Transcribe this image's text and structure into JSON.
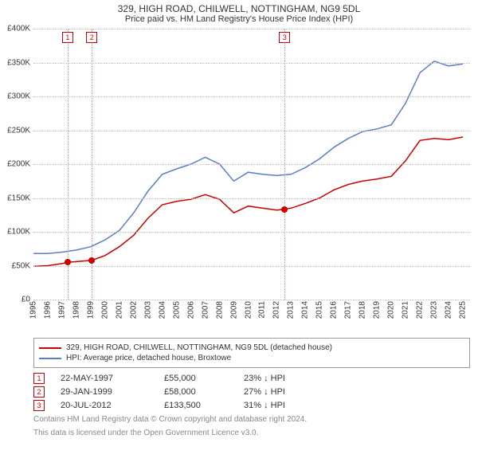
{
  "title": "329, HIGH ROAD, CHILWELL, NOTTINGHAM, NG9 5DL",
  "subtitle": "Price paid vs. HM Land Registry's House Price Index (HPI)",
  "chart": {
    "background": "#ffffff",
    "grid_color": "#bbbbbb",
    "x_min": 1995,
    "x_max": 2025.5,
    "y_min": 0,
    "y_max": 400000,
    "y_ticks": [
      0,
      50000,
      100000,
      150000,
      200000,
      250000,
      300000,
      350000,
      400000
    ],
    "y_tick_labels": [
      "£0",
      "£50K",
      "£100K",
      "£150K",
      "£200K",
      "£250K",
      "£300K",
      "£350K",
      "£400K"
    ],
    "x_ticks": [
      1995,
      1996,
      1997,
      1998,
      1999,
      2000,
      2001,
      2002,
      2003,
      2004,
      2005,
      2006,
      2007,
      2008,
      2009,
      2010,
      2011,
      2012,
      2013,
      2014,
      2015,
      2016,
      2017,
      2018,
      2019,
      2020,
      2021,
      2022,
      2023,
      2024,
      2025
    ],
    "markers": [
      {
        "n": "1",
        "x": 1997.39
      },
      {
        "n": "2",
        "x": 1999.08
      },
      {
        "n": "3",
        "x": 2012.55
      }
    ],
    "sale_points": [
      {
        "x": 1997.39,
        "y": 55000
      },
      {
        "x": 1999.08,
        "y": 58000
      },
      {
        "x": 2012.55,
        "y": 133500
      }
    ],
    "series": [
      {
        "name": "329, HIGH ROAD, CHILWELL, NOTTINGHAM, NG9 5DL (detached house)",
        "color": "#cc0000",
        "width": 1.5,
        "data": [
          [
            1995,
            49000
          ],
          [
            1996,
            50000
          ],
          [
            1997,
            53000
          ],
          [
            1997.39,
            55000
          ],
          [
            1998,
            56000
          ],
          [
            1999.08,
            58000
          ],
          [
            2000,
            65000
          ],
          [
            2001,
            78000
          ],
          [
            2002,
            95000
          ],
          [
            2003,
            120000
          ],
          [
            2004,
            140000
          ],
          [
            2005,
            145000
          ],
          [
            2006,
            148000
          ],
          [
            2007,
            155000
          ],
          [
            2008,
            148000
          ],
          [
            2009,
            128000
          ],
          [
            2010,
            138000
          ],
          [
            2011,
            135000
          ],
          [
            2012,
            132000
          ],
          [
            2012.55,
            133500
          ],
          [
            2013,
            135000
          ],
          [
            2014,
            142000
          ],
          [
            2015,
            150000
          ],
          [
            2016,
            162000
          ],
          [
            2017,
            170000
          ],
          [
            2018,
            175000
          ],
          [
            2019,
            178000
          ],
          [
            2020,
            182000
          ],
          [
            2021,
            205000
          ],
          [
            2022,
            235000
          ],
          [
            2023,
            238000
          ],
          [
            2024,
            236000
          ],
          [
            2025,
            240000
          ]
        ]
      },
      {
        "name": "HPI: Average price, detached house, Broxtowe",
        "color": "#5b7fc7",
        "width": 1.5,
        "data": [
          [
            1995,
            68000
          ],
          [
            1996,
            68000
          ],
          [
            1997,
            70000
          ],
          [
            1998,
            73000
          ],
          [
            1999,
            78000
          ],
          [
            2000,
            88000
          ],
          [
            2001,
            102000
          ],
          [
            2002,
            128000
          ],
          [
            2003,
            160000
          ],
          [
            2004,
            185000
          ],
          [
            2005,
            193000
          ],
          [
            2006,
            200000
          ],
          [
            2007,
            210000
          ],
          [
            2008,
            200000
          ],
          [
            2009,
            175000
          ],
          [
            2010,
            188000
          ],
          [
            2011,
            185000
          ],
          [
            2012,
            183000
          ],
          [
            2013,
            185000
          ],
          [
            2014,
            195000
          ],
          [
            2015,
            208000
          ],
          [
            2016,
            225000
          ],
          [
            2017,
            238000
          ],
          [
            2018,
            248000
          ],
          [
            2019,
            252000
          ],
          [
            2020,
            258000
          ],
          [
            2021,
            290000
          ],
          [
            2022,
            335000
          ],
          [
            2023,
            352000
          ],
          [
            2024,
            345000
          ],
          [
            2025,
            348000
          ]
        ]
      }
    ]
  },
  "legend": [
    {
      "color": "#cc0000",
      "label": "329, HIGH ROAD, CHILWELL, NOTTINGHAM, NG9 5DL (detached house)"
    },
    {
      "color": "#5b7fc7",
      "label": "HPI: Average price, detached house, Broxtowe"
    }
  ],
  "sales": [
    {
      "n": "1",
      "date": "22-MAY-1997",
      "price": "£55,000",
      "delta": "23% ↓ HPI"
    },
    {
      "n": "2",
      "date": "29-JAN-1999",
      "price": "£58,000",
      "delta": "27% ↓ HPI"
    },
    {
      "n": "3",
      "date": "20-JUL-2012",
      "price": "£133,500",
      "delta": "31% ↓ HPI"
    }
  ],
  "footnote1": "Contains HM Land Registry data © Crown copyright and database right 2024.",
  "footnote2": "This data is licensed under the Open Government Licence v3.0."
}
